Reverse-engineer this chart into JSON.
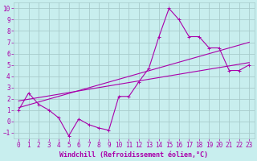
{
  "title": "",
  "xlabel": "Windchill (Refroidissement éolien,°C)",
  "bg_color": "#c8eeee",
  "grid_color": "#a8cccc",
  "line_color": "#aa00aa",
  "xlim": [
    -0.5,
    23.5
  ],
  "ylim": [
    -1.5,
    10.5
  ],
  "xticks": [
    0,
    1,
    2,
    3,
    4,
    5,
    6,
    7,
    8,
    9,
    10,
    11,
    12,
    13,
    14,
    15,
    16,
    17,
    18,
    19,
    20,
    21,
    22,
    23
  ],
  "yticks": [
    -1,
    0,
    1,
    2,
    3,
    4,
    5,
    6,
    7,
    8,
    9,
    10
  ],
  "data_x": [
    0,
    1,
    2,
    3,
    4,
    5,
    6,
    7,
    8,
    9,
    10,
    11,
    12,
    13,
    14,
    15,
    16,
    17,
    18,
    19,
    20,
    21,
    22,
    23
  ],
  "data_y": [
    1.0,
    2.5,
    1.5,
    1.0,
    0.3,
    -1.3,
    0.2,
    -0.3,
    -0.6,
    -0.8,
    2.2,
    2.2,
    3.5,
    4.7,
    7.5,
    10.0,
    9.0,
    7.5,
    7.5,
    6.5,
    6.5,
    4.5,
    4.5,
    5.0
  ],
  "line1_x": [
    0,
    23
  ],
  "line1_y": [
    1.2,
    7.0
  ],
  "line2_x": [
    0,
    23
  ],
  "line2_y": [
    1.8,
    5.2
  ],
  "xlabel_fontsize": 6,
  "tick_fontsize": 5.5,
  "linewidth": 0.8,
  "marker_size": 2.5
}
